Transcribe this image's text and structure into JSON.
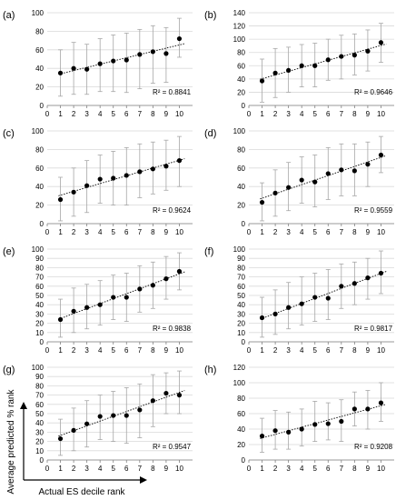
{
  "figure": {
    "ylabel": "Average predicted % rank",
    "xlabel": "Actual ES decile rank"
  },
  "chart_data": [
    {
      "type": "scatter",
      "panel_label": "(a)",
      "x": [
        1,
        2,
        3,
        4,
        5,
        6,
        7,
        8,
        9,
        10
      ],
      "y": [
        35,
        40,
        39,
        45,
        48,
        49,
        55,
        58,
        56,
        72
      ],
      "err_low": [
        10,
        12,
        12,
        15,
        15,
        14,
        18,
        24,
        25,
        52
      ],
      "err_high": [
        60,
        68,
        66,
        72,
        76,
        78,
        82,
        86,
        84,
        94
      ],
      "ylim": [
        0,
        100
      ],
      "yticks": [
        0,
        20,
        40,
        60,
        80,
        100
      ],
      "xlim": [
        0,
        11
      ],
      "xticks": [
        0,
        1,
        2,
        3,
        4,
        5,
        6,
        7,
        8,
        9,
        10
      ],
      "r2_text": "R² = 0.8841",
      "trendline": "linear"
    },
    {
      "type": "scatter",
      "panel_label": "(b)",
      "x": [
        1,
        2,
        3,
        4,
        5,
        6,
        7,
        8,
        9,
        10
      ],
      "y": [
        37,
        49,
        53,
        60,
        60,
        69,
        74,
        76,
        82,
        95
      ],
      "err_low": [
        5,
        12,
        20,
        28,
        28,
        38,
        40,
        46,
        52,
        65
      ],
      "err_high": [
        70,
        86,
        88,
        92,
        94,
        100,
        106,
        108,
        114,
        124
      ],
      "ylim": [
        0,
        140
      ],
      "yticks": [
        0,
        20,
        40,
        60,
        80,
        100,
        120,
        140
      ],
      "xlim": [
        0,
        11
      ],
      "xticks": [
        0,
        1,
        2,
        3,
        4,
        5,
        6,
        7,
        8,
        9,
        10
      ],
      "r2_text": "R² = 0.9646",
      "trendline": "linear"
    },
    {
      "type": "scatter",
      "panel_label": "(c)",
      "x": [
        1,
        2,
        3,
        4,
        5,
        6,
        7,
        8,
        9,
        10
      ],
      "y": [
        26,
        34,
        41,
        48,
        49,
        52,
        56,
        59,
        62,
        68
      ],
      "err_low": [
        3,
        8,
        12,
        22,
        20,
        20,
        28,
        32,
        36,
        40
      ],
      "err_high": [
        50,
        60,
        68,
        74,
        78,
        82,
        86,
        88,
        90,
        94
      ],
      "ylim": [
        0,
        100
      ],
      "yticks": [
        0,
        20,
        40,
        60,
        80,
        100
      ],
      "xlim": [
        0,
        11
      ],
      "xticks": [
        0,
        1,
        2,
        3,
        4,
        5,
        6,
        7,
        8,
        9,
        10
      ],
      "r2_text": "R² = 0.9624",
      "trendline": "linear"
    },
    {
      "type": "scatter",
      "panel_label": "(d)",
      "x": [
        1,
        2,
        3,
        4,
        5,
        6,
        7,
        8,
        9,
        10
      ],
      "y": [
        23,
        33,
        39,
        47,
        45,
        54,
        58,
        57,
        64,
        74
      ],
      "err_low": [
        3,
        8,
        14,
        22,
        18,
        26,
        30,
        30,
        40,
        55
      ],
      "err_high": [
        44,
        58,
        66,
        72,
        74,
        82,
        86,
        86,
        88,
        94
      ],
      "ylim": [
        0,
        100
      ],
      "yticks": [
        0,
        20,
        40,
        60,
        80,
        100
      ],
      "xlim": [
        0,
        11
      ],
      "xticks": [
        0,
        1,
        2,
        3,
        4,
        5,
        6,
        7,
        8,
        9,
        10
      ],
      "r2_text": "R² = 0.9559",
      "trendline": "linear"
    },
    {
      "type": "scatter",
      "panel_label": "(e)",
      "x": [
        1,
        2,
        3,
        4,
        5,
        6,
        7,
        8,
        9,
        10
      ],
      "y": [
        24,
        33,
        37,
        40,
        48,
        48,
        57,
        61,
        68,
        76
      ],
      "err_low": [
        5,
        10,
        14,
        18,
        24,
        22,
        32,
        36,
        46,
        56
      ],
      "err_high": [
        46,
        58,
        62,
        66,
        72,
        74,
        82,
        86,
        92,
        96
      ],
      "ylim": [
        0,
        100
      ],
      "yticks": [
        0,
        10,
        20,
        30,
        40,
        50,
        60,
        70,
        80,
        90,
        100
      ],
      "xlim": [
        0,
        11
      ],
      "xticks": [
        0,
        1,
        2,
        3,
        4,
        5,
        6,
        7,
        8,
        9,
        10
      ],
      "r2_text": "R² = 0.9838",
      "trendline": "linear"
    },
    {
      "type": "scatter",
      "panel_label": "(f)",
      "x": [
        1,
        2,
        3,
        4,
        5,
        6,
        7,
        8,
        9,
        10
      ],
      "y": [
        26,
        30,
        37,
        41,
        48,
        47,
        60,
        63,
        69,
        74
      ],
      "err_low": [
        5,
        8,
        14,
        18,
        22,
        24,
        36,
        40,
        46,
        52
      ],
      "err_high": [
        48,
        56,
        64,
        70,
        74,
        78,
        84,
        86,
        90,
        98
      ],
      "ylim": [
        0,
        100
      ],
      "yticks": [
        0,
        10,
        20,
        30,
        40,
        50,
        60,
        70,
        80,
        90,
        100
      ],
      "xlim": [
        0,
        11
      ],
      "xticks": [
        0,
        1,
        2,
        3,
        4,
        5,
        6,
        7,
        8,
        9,
        10
      ],
      "r2_text": "R² = 0.9817",
      "trendline": "linear"
    },
    {
      "type": "scatter",
      "panel_label": "(g)",
      "x": [
        1,
        2,
        3,
        4,
        5,
        6,
        7,
        8,
        9,
        10
      ],
      "y": [
        23,
        32,
        39,
        47,
        48,
        48,
        54,
        64,
        72,
        70
      ],
      "err_low": [
        5,
        10,
        14,
        22,
        20,
        18,
        24,
        36,
        50,
        50
      ],
      "err_high": [
        44,
        56,
        64,
        70,
        74,
        78,
        82,
        92,
        94,
        96
      ],
      "ylim": [
        0,
        100
      ],
      "yticks": [
        0,
        10,
        20,
        30,
        40,
        50,
        60,
        70,
        80,
        90,
        100
      ],
      "xlim": [
        0,
        11
      ],
      "xticks": [
        0,
        1,
        2,
        3,
        4,
        5,
        6,
        7,
        8,
        9,
        10
      ],
      "r2_text": "R² = 0.9547",
      "trendline": "linear"
    },
    {
      "type": "scatter",
      "panel_label": "(h)",
      "x": [
        1,
        2,
        3,
        4,
        5,
        6,
        7,
        8,
        9,
        10
      ],
      "y": [
        31,
        38,
        36,
        40,
        46,
        47,
        50,
        66,
        66,
        74
      ],
      "err_low": [
        10,
        14,
        14,
        18,
        24,
        26,
        24,
        44,
        40,
        50
      ],
      "err_high": [
        54,
        64,
        62,
        66,
        76,
        74,
        78,
        88,
        90,
        100
      ],
      "ylim": [
        0,
        120
      ],
      "yticks": [
        0,
        20,
        40,
        60,
        80,
        100,
        120
      ],
      "xlim": [
        0,
        11
      ],
      "xticks": [
        0,
        1,
        2,
        3,
        4,
        5,
        6,
        7,
        8,
        9,
        10
      ],
      "r2_text": "R² = 0.9208",
      "trendline": "linear"
    }
  ]
}
